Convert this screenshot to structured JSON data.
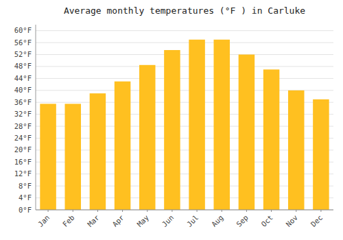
{
  "chart_data": {
    "type": "bar",
    "title": "Average monthly temperatures (°F ) in Carluke",
    "categories": [
      "Jan",
      "Feb",
      "Mar",
      "Apr",
      "May",
      "Jun",
      "Jul",
      "Aug",
      "Sep",
      "Oct",
      "Nov",
      "Dec"
    ],
    "values": [
      35.5,
      35.5,
      39.0,
      43.0,
      48.5,
      53.5,
      57.0,
      57.0,
      52.0,
      47.0,
      40.0,
      37.0
    ],
    "color": "#FFC020",
    "ylim": [
      0,
      62
    ],
    "yticks": [
      {
        "value": 0,
        "label": "0°F"
      },
      {
        "value": 4,
        "label": "4°F"
      },
      {
        "value": 8,
        "label": "8°F"
      },
      {
        "value": 12,
        "label": "12°F"
      },
      {
        "value": 16,
        "label": "16°F"
      },
      {
        "value": 20,
        "label": "20°F"
      },
      {
        "value": 24,
        "label": "24°F"
      },
      {
        "value": 28,
        "label": "28°F"
      },
      {
        "value": 32,
        "label": "32°F"
      },
      {
        "value": 36,
        "label": "36°F"
      },
      {
        "value": 40,
        "label": "40°F"
      },
      {
        "value": 44,
        "label": "44°F"
      },
      {
        "value": 48,
        "label": "48°F"
      },
      {
        "value": 52,
        "label": "52°F"
      },
      {
        "value": 56,
        "label": "56°F"
      },
      {
        "value": 60,
        "label": "60°F"
      }
    ],
    "grid": true
  }
}
